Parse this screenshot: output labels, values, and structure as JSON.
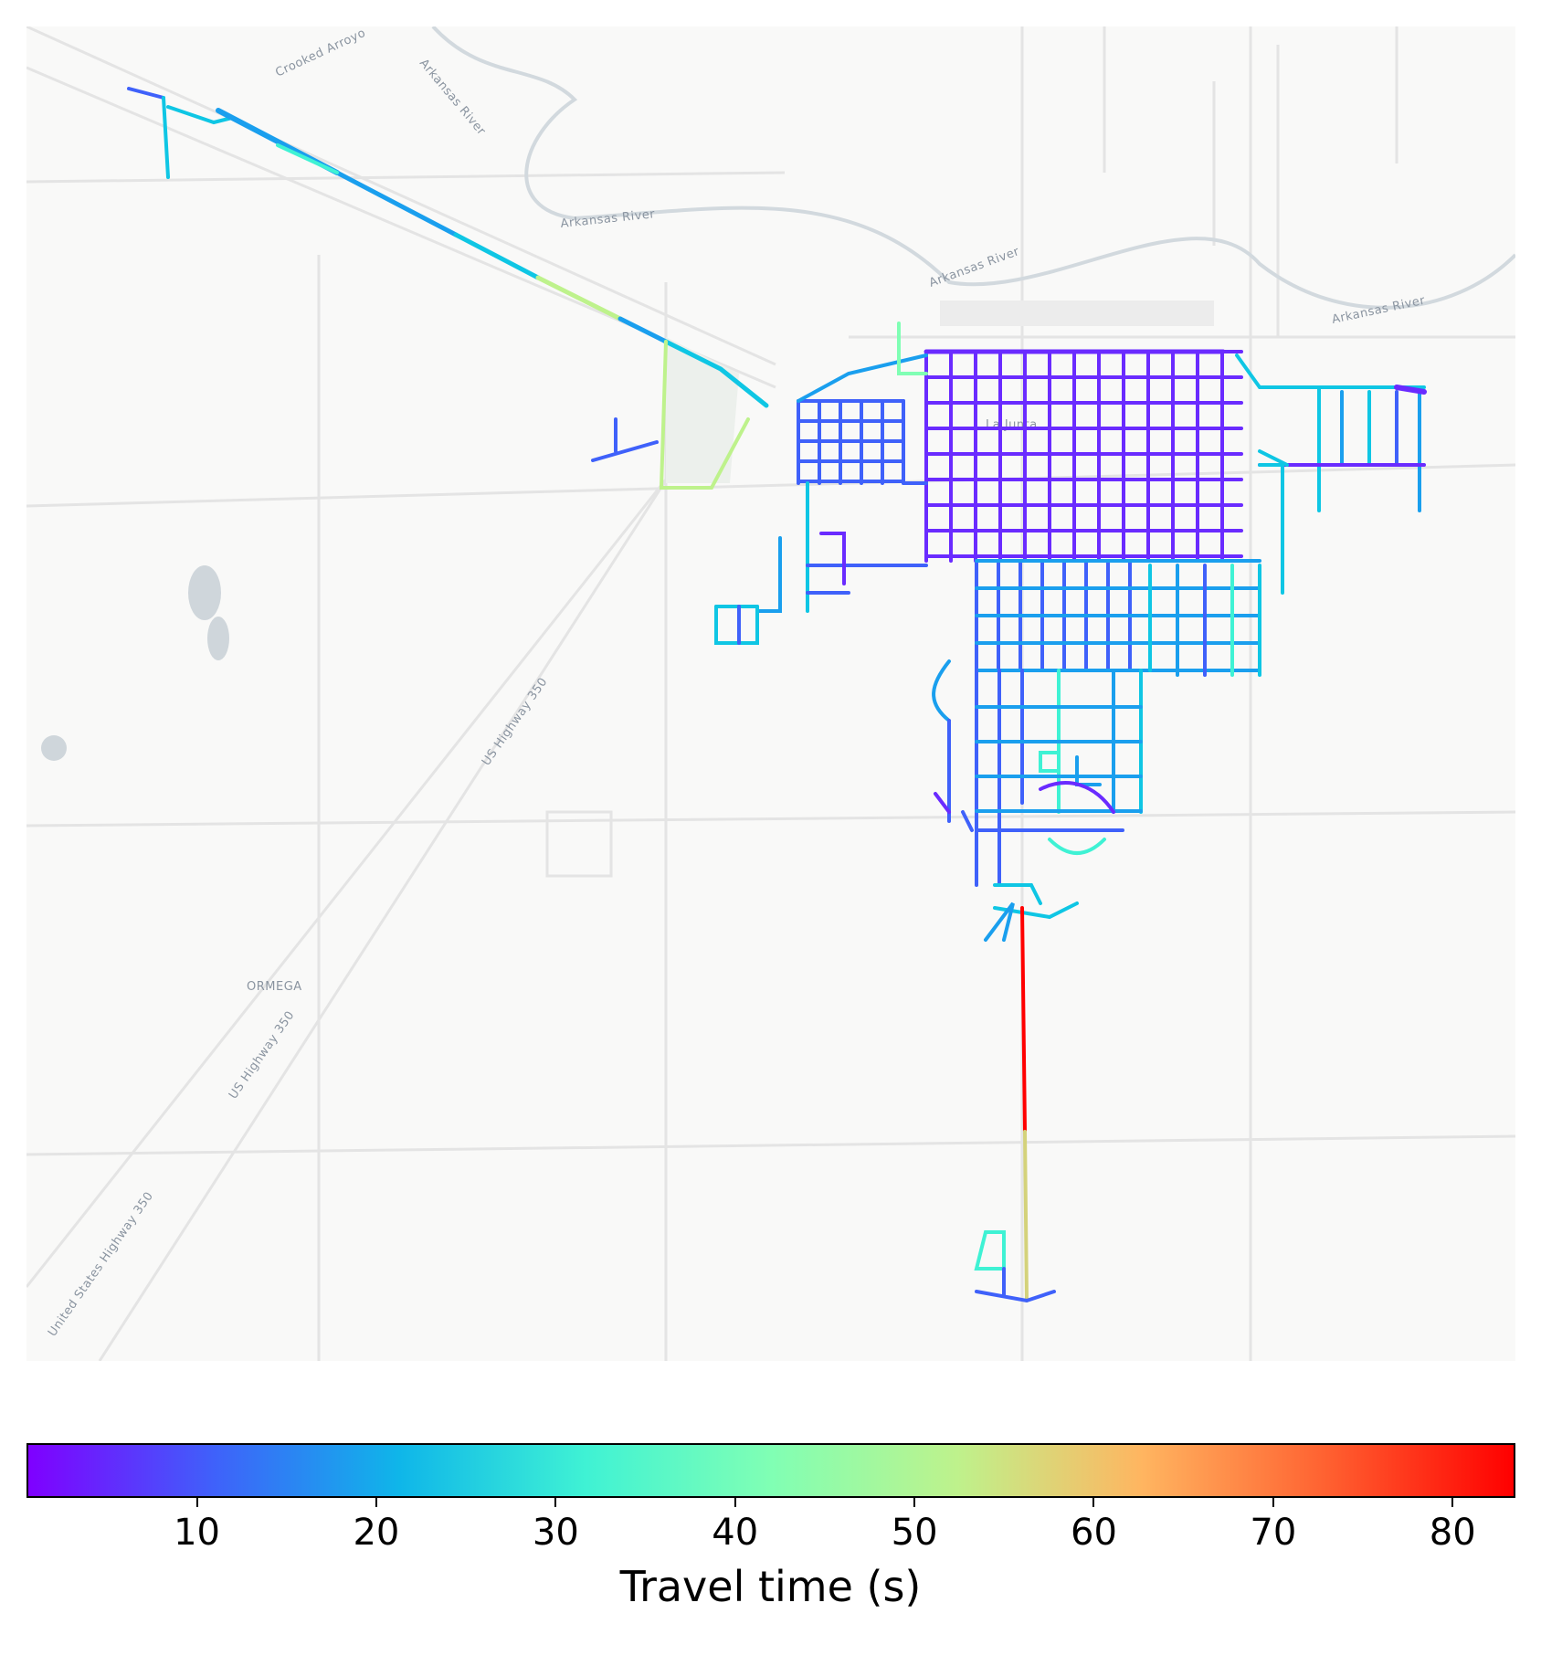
{
  "labels": {
    "crooked_arroyo": "Crooked Arroyo",
    "arkansas_river": "Arkansas River",
    "la_junta": "La Junta",
    "us_highway_350": "US Highway 350",
    "united_states_highway_350": "United States Highway 350",
    "ormega": "ORMEGA"
  },
  "colorbar": {
    "label": "Travel time (s)",
    "min": 0.5,
    "max": 83.5,
    "ticks": [
      {
        "value": 10,
        "label": "10"
      },
      {
        "value": 20,
        "label": "20"
      },
      {
        "value": 30,
        "label": "30"
      },
      {
        "value": 40,
        "label": "40"
      },
      {
        "value": 50,
        "label": "50"
      },
      {
        "value": 60,
        "label": "60"
      },
      {
        "value": 70,
        "label": "70"
      },
      {
        "value": 80,
        "label": "80"
      }
    ],
    "colormap": [
      "#7f00ff",
      "#3f61fa",
      "#0fb6e9",
      "#3ff2d4",
      "#80ffb4",
      "#bef28c",
      "#ffb560",
      "#ff6030",
      "#ff0000"
    ]
  },
  "colors": {
    "background": "#f9f9f8",
    "road_light": "#e2e2e2",
    "water": "#c9d3da",
    "accent_red": "#ff0000"
  }
}
